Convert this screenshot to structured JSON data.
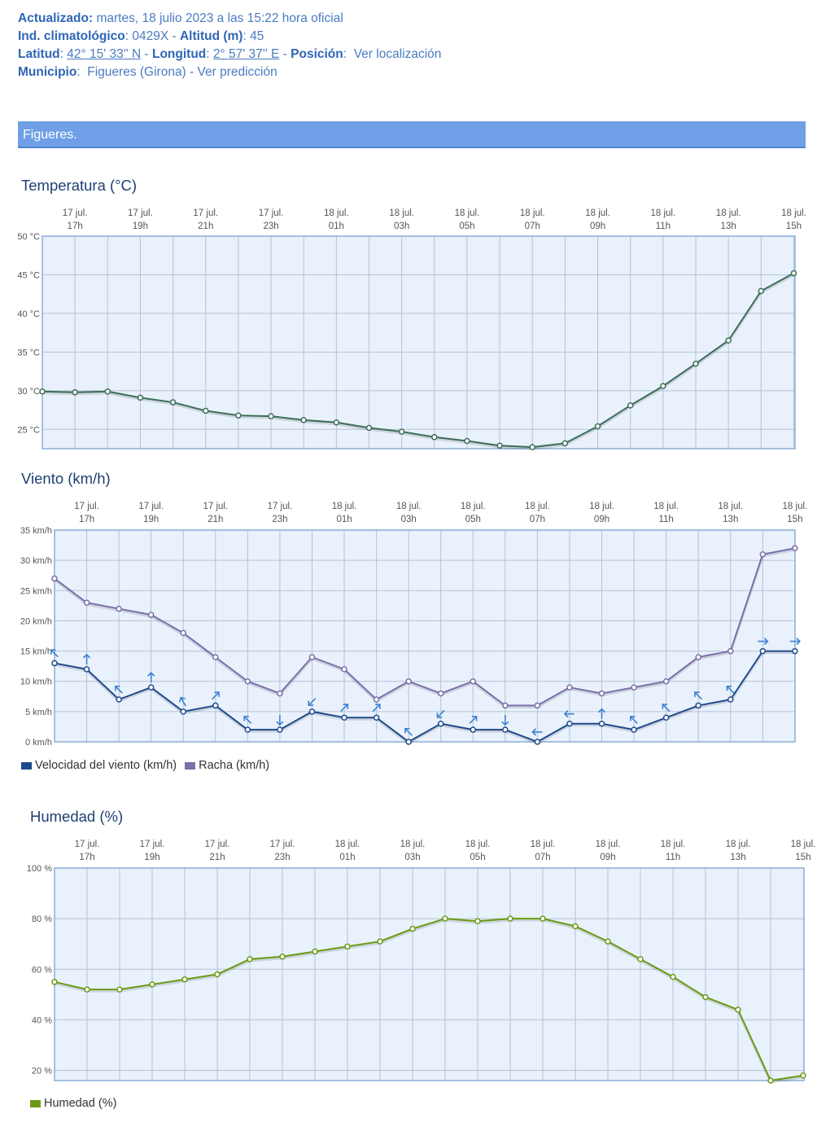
{
  "header": {
    "updated_label": "Actualizado:",
    "updated_value": "martes, 18 julio 2023 a las 15:22 hora oficial",
    "station_label": "Ind. climatológico",
    "station_value": ": 0429X -",
    "altitude_label": "Altitud (m)",
    "altitude_value": ": 45",
    "lat_label": "Latitud",
    "lat_sep": ":",
    "lat_value": "42° 15' 33'' N",
    "lon_label": "Longitud",
    "lon_sep": ":",
    "lon_value": "2° 57' 37'' E",
    "dash": "-",
    "pos_label": "Posición",
    "pos_sep": ":",
    "pos_link": "Ver localización",
    "muni_label": "Municipio",
    "muni_sep": ":",
    "muni_value": "Figueres (Girona) -",
    "muni_link": "Ver predicción"
  },
  "banner": {
    "title": "Figueres."
  },
  "colors": {
    "grid": "#b5c3d6",
    "plot_bg": "#e9f1fc",
    "frame": "#8aaed6",
    "temp_line": "#3b6e57",
    "wind_line": "#1f4a8c",
    "gust_line": "#7b6fa8",
    "wind_arrow": "#3b7fd2",
    "humidity_line": "#6a9a12"
  },
  "time_labels": {
    "dates": [
      "17 jul.",
      "17 jul.",
      "17 jul.",
      "17 jul.",
      "18 jul.",
      "18 jul.",
      "18 jul.",
      "18 jul.",
      "18 jul.",
      "18 jul.",
      "18 jul.",
      "18 jul."
    ],
    "hours": [
      "17h",
      "19h",
      "21h",
      "23h",
      "01h",
      "03h",
      "05h",
      "07h",
      "09h",
      "11h",
      "13h",
      "15h"
    ]
  },
  "chart_data": [
    {
      "type": "line",
      "title": "Temperatura (°C)",
      "ylim": [
        22.5,
        50
      ],
      "yticks": [
        25,
        30,
        35,
        40,
        45,
        50
      ],
      "ytick_labels": [
        "25 °C",
        "30 °C",
        "35 °C",
        "40 °C",
        "45 °C",
        "50 °C"
      ],
      "x": [
        "16h",
        "17h",
        "18h",
        "19h",
        "20h",
        "21h",
        "22h",
        "23h",
        "00h",
        "01h",
        "02h",
        "03h",
        "04h",
        "05h",
        "06h",
        "07h",
        "08h",
        "09h",
        "10h",
        "11h",
        "12h",
        "13h",
        "14h",
        "15h"
      ],
      "grid": true,
      "series": [
        {
          "values": [
            29.9,
            29.8,
            29.9,
            29.1,
            28.5,
            27.4,
            26.8,
            26.7,
            26.2,
            25.9,
            25.2,
            24.7,
            24.0,
            23.5,
            22.9,
            22.7,
            23.2,
            25.4,
            28.1,
            30.6,
            33.5,
            36.5,
            42.9,
            45.2
          ]
        }
      ]
    },
    {
      "type": "line",
      "title": "Viento (km/h)",
      "ylim": [
        0,
        35
      ],
      "yticks": [
        0,
        5,
        10,
        15,
        20,
        25,
        30,
        35
      ],
      "ytick_labels": [
        "0 km/h",
        "5 km/h",
        "10 km/h",
        "15 km/h",
        "20 km/h",
        "25 km/h",
        "30 km/h",
        "35 km/h"
      ],
      "x": [
        "16h",
        "17h",
        "18h",
        "19h",
        "20h",
        "21h",
        "22h",
        "23h",
        "00h",
        "01h",
        "02h",
        "03h",
        "04h",
        "05h",
        "06h",
        "07h",
        "08h",
        "09h",
        "10h",
        "11h",
        "12h",
        "13h",
        "14h",
        "15h"
      ],
      "grid": true,
      "legend_position": "bottom-left",
      "series": [
        {
          "name": "Velocidad del viento (km/h)",
          "values": [
            13,
            12,
            7,
            9,
            5,
            6,
            2,
            2,
            5,
            4,
            4,
            0,
            3,
            2,
            2,
            0,
            3,
            3,
            2,
            4,
            6,
            7,
            15,
            15
          ]
        },
        {
          "name": "Racha (km/h)",
          "values": [
            27,
            23,
            22,
            21,
            18,
            14,
            10,
            8,
            14,
            12,
            7,
            10,
            8,
            10,
            6,
            6,
            9,
            8,
            9,
            10,
            14,
            15,
            31,
            32
          ]
        }
      ],
      "wind_direction_deg": [
        315,
        0,
        315,
        0,
        330,
        45,
        315,
        180,
        225,
        45,
        45,
        315,
        225,
        45,
        180,
        270,
        270,
        0,
        315,
        315,
        315,
        315,
        90,
        90
      ]
    },
    {
      "type": "line",
      "title": "Humedad (%)",
      "ylim": [
        16,
        100
      ],
      "yticks": [
        20,
        40,
        60,
        80,
        100
      ],
      "ytick_labels": [
        "20 %",
        "40 %",
        "60 %",
        "80 %",
        "100 %"
      ],
      "x": [
        "16h",
        "17h",
        "18h",
        "19h",
        "20h",
        "21h",
        "22h",
        "23h",
        "00h",
        "01h",
        "02h",
        "03h",
        "04h",
        "05h",
        "06h",
        "07h",
        "08h",
        "09h",
        "10h",
        "11h",
        "12h",
        "13h",
        "14h",
        "15h"
      ],
      "grid": true,
      "legend_position": "bottom-left",
      "series": [
        {
          "name": "Humedad (%)",
          "values": [
            55,
            52,
            52,
            54,
            56,
            58,
            64,
            65,
            67,
            69,
            71,
            76,
            80,
            79,
            80,
            80,
            77,
            71,
            64,
            57,
            49,
            44,
            16,
            18
          ]
        }
      ]
    }
  ]
}
